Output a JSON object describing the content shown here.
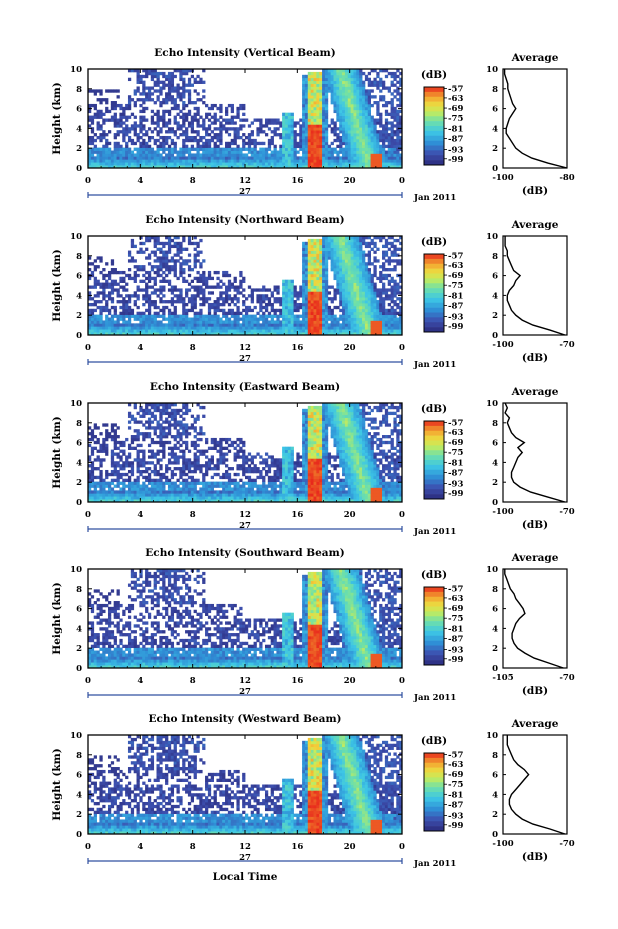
{
  "chart_data": [
    {
      "type": "heatmap",
      "title": "Echo Intensity (Vertical Beam)",
      "ylabel": "Height (km)",
      "xlim": [
        0,
        24
      ],
      "ylim": [
        0,
        10
      ],
      "x_ticks": [
        "0",
        "4",
        "8",
        "12",
        "16",
        "20",
        "0"
      ],
      "y_ticks": [
        "0",
        "2",
        "4",
        "6",
        "8",
        "10"
      ],
      "date_day": "27",
      "date_label": "Jan 2011",
      "colorbar": {
        "label": "(dB)",
        "ticks": [
          "-57",
          "-63",
          "-69",
          "-75",
          "-81",
          "-87",
          "-93",
          "-99"
        ],
        "range": [
          -99,
          -57
        ]
      },
      "profile": {
        "title": "Average",
        "xlabel": "(dB)",
        "xlim": [
          -100,
          -80
        ],
        "x_ticks": [
          "-100",
          "-80"
        ],
        "height": [
          0,
          0.5,
          1,
          1.5,
          2,
          2.5,
          3,
          3.5,
          4,
          4.5,
          5,
          5.5,
          6,
          6.5,
          7,
          7.5,
          8,
          8.5,
          9,
          9.5,
          10
        ],
        "value": [
          -80,
          -86,
          -91,
          -94,
          -96,
          -97,
          -98,
          -99,
          -99,
          -98.5,
          -98,
          -97,
          -96,
          -97,
          -97.5,
          -98,
          -98.5,
          -98.5,
          -99,
          -99.5,
          -99.5
        ]
      }
    },
    {
      "type": "heatmap",
      "title": "Echo Intensity (Northward Beam)",
      "ylabel": "Height (km)",
      "xlim": [
        0,
        24
      ],
      "ylim": [
        0,
        10
      ],
      "x_ticks": [
        "0",
        "4",
        "8",
        "12",
        "16",
        "20",
        "0"
      ],
      "y_ticks": [
        "0",
        "2",
        "4",
        "6",
        "8",
        "10"
      ],
      "date_day": "27",
      "date_label": "Jan 2011",
      "colorbar": {
        "label": "(dB)",
        "ticks": [
          "-57",
          "-63",
          "-69",
          "-75",
          "-81",
          "-87",
          "-93",
          "-99"
        ],
        "range": [
          -99,
          -57
        ]
      },
      "profile": {
        "title": "Average",
        "xlabel": "(dB)",
        "xlim": [
          -100,
          -70
        ],
        "x_ticks": [
          "-100",
          "-70"
        ],
        "height": [
          0,
          0.5,
          1,
          1.5,
          2,
          2.5,
          3,
          3.5,
          4,
          4.5,
          5,
          5.5,
          6,
          6.5,
          7,
          7.5,
          8,
          8.5,
          9,
          9.5,
          10
        ],
        "value": [
          -71,
          -78,
          -86,
          -91,
          -94,
          -96,
          -97,
          -98,
          -98,
          -97,
          -95,
          -94,
          -92,
          -95,
          -96,
          -97,
          -98,
          -98,
          -99,
          -99,
          -99
        ]
      }
    },
    {
      "type": "heatmap",
      "title": "Echo Intensity (Eastward Beam)",
      "ylabel": "Height (km)",
      "xlim": [
        0,
        24
      ],
      "ylim": [
        0,
        10
      ],
      "x_ticks": [
        "0",
        "4",
        "8",
        "12",
        "16",
        "20",
        "0"
      ],
      "y_ticks": [
        "0",
        "2",
        "4",
        "6",
        "8",
        "10"
      ],
      "date_day": "27",
      "date_label": "Jan 2011",
      "colorbar": {
        "label": "(dB)",
        "ticks": [
          "-57",
          "-63",
          "-69",
          "-75",
          "-81",
          "-87",
          "-93",
          "-99"
        ],
        "range": [
          -99,
          -57
        ]
      },
      "profile": {
        "title": "Average",
        "xlabel": "(dB)",
        "xlim": [
          -100,
          -70
        ],
        "x_ticks": [
          "-100",
          "-70"
        ],
        "height": [
          0,
          0.5,
          1,
          1.5,
          2,
          2.5,
          3,
          3.5,
          4,
          4.5,
          5,
          5.5,
          6,
          6.5,
          7,
          7.5,
          8,
          8.5,
          9,
          9.5,
          10
        ],
        "value": [
          -71,
          -79,
          -87,
          -92,
          -95,
          -96,
          -96,
          -95,
          -94,
          -93,
          -91,
          -93,
          -90,
          -94,
          -96,
          -97,
          -98,
          -97,
          -99,
          -98,
          -99
        ]
      }
    },
    {
      "type": "heatmap",
      "title": "Echo Intensity (Southward Beam)",
      "ylabel": "Height (km)",
      "xlim": [
        0,
        24
      ],
      "ylim": [
        0,
        10
      ],
      "x_ticks": [
        "0",
        "4",
        "8",
        "12",
        "16",
        "20",
        "0"
      ],
      "y_ticks": [
        "0",
        "2",
        "4",
        "6",
        "8",
        "10"
      ],
      "date_day": "27",
      "date_label": "Jan 2011",
      "colorbar": {
        "label": "(dB)",
        "ticks": [
          "-57",
          "-63",
          "-69",
          "-75",
          "-81",
          "-87",
          "-93",
          "-99"
        ],
        "range": [
          -99,
          -57
        ]
      },
      "profile": {
        "title": "Average",
        "xlabel": "(dB)",
        "xlim": [
          -105,
          -70
        ],
        "x_ticks": [
          "-105",
          "-70"
        ],
        "height": [
          0,
          0.5,
          1,
          1.5,
          2,
          2.5,
          3,
          3.5,
          4,
          4.5,
          5,
          5.5,
          6,
          6.5,
          7,
          7.5,
          8,
          8.5,
          9,
          9.5,
          10
        ],
        "value": [
          -72,
          -80,
          -88,
          -93,
          -97,
          -99,
          -100,
          -100,
          -99,
          -98,
          -96,
          -93,
          -94,
          -96,
          -98,
          -99,
          -101,
          -102,
          -103,
          -104,
          -104
        ]
      }
    },
    {
      "type": "heatmap",
      "title": "Echo Intensity (Westward Beam)",
      "ylabel": "Height (km)",
      "xlabel": "Local Time",
      "xlim": [
        0,
        24
      ],
      "ylim": [
        0,
        10
      ],
      "x_ticks": [
        "0",
        "4",
        "8",
        "12",
        "16",
        "20",
        "0"
      ],
      "y_ticks": [
        "0",
        "2",
        "4",
        "6",
        "8",
        "10"
      ],
      "date_day": "27",
      "date_label": "Jan 2011",
      "colorbar": {
        "label": "(dB)",
        "ticks": [
          "-57",
          "-63",
          "-69",
          "-75",
          "-81",
          "-87",
          "-93",
          "-99"
        ],
        "range": [
          -99,
          -57
        ]
      },
      "profile": {
        "title": "Average",
        "xlabel": "(dB)",
        "xlim": [
          -100,
          -70
        ],
        "x_ticks": [
          "-100",
          "-70"
        ],
        "height": [
          0,
          0.5,
          1,
          1.5,
          2,
          2.5,
          3,
          3.5,
          4,
          4.5,
          5,
          5.5,
          6,
          6.5,
          7,
          7.5,
          8,
          8.5,
          9,
          9.5,
          10
        ],
        "value": [
          -71,
          -78,
          -86,
          -91,
          -94,
          -96,
          -97,
          -97,
          -96,
          -94,
          -92,
          -90,
          -88,
          -90,
          -93,
          -95,
          -96,
          -97,
          -98,
          -98,
          -98
        ]
      }
    }
  ]
}
